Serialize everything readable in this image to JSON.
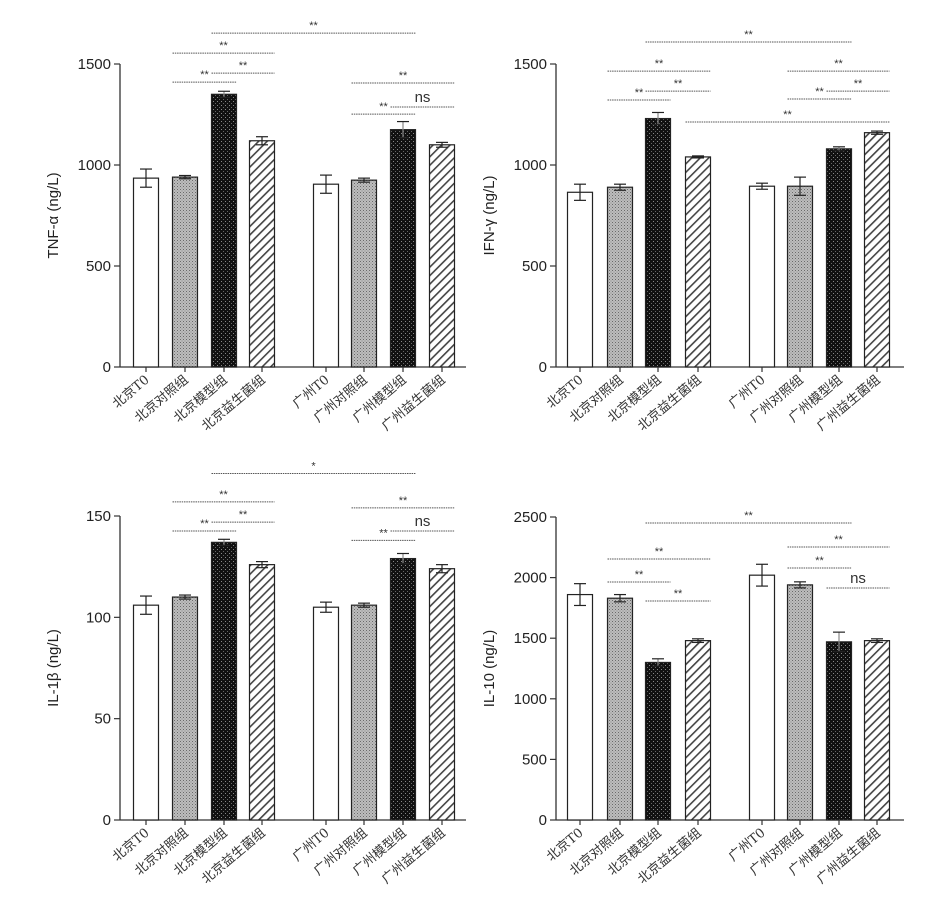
{
  "chart_data": [
    {
      "type": "bar",
      "ylabel": "TNF-α (ng/L)",
      "ylim": [
        0,
        1500
      ],
      "yticks": [
        "0",
        "500",
        "1000",
        "1500"
      ],
      "categories": [
        "北京T0",
        "北京对照组",
        "北京模型组",
        "北京益生菌组",
        "广州T0",
        "广州对照组",
        "广州模型组",
        "广州益生菌组"
      ],
      "values": [
        935,
        940,
        1350,
        1120,
        905,
        925,
        1175,
        1100
      ],
      "errors": [
        45,
        8,
        15,
        20,
        45,
        10,
        40,
        12
      ],
      "significance": [
        {
          "from": 1,
          "to": 2,
          "label": "**",
          "y": 1410
        },
        {
          "from": 2,
          "to": 3,
          "label": "**",
          "y": 1455
        },
        {
          "from": 1,
          "to": 3,
          "label": "**",
          "y": 1554
        },
        {
          "from": 2,
          "to": 6,
          "label": "**",
          "y": 1653
        },
        {
          "from": 5,
          "to": 6,
          "label": "**",
          "y": 1252
        },
        {
          "from": 6,
          "to": 7,
          "label": "ns",
          "y": 1287
        },
        {
          "from": 5,
          "to": 7,
          "label": "**",
          "y": 1406
        }
      ]
    },
    {
      "type": "bar",
      "ylabel": "IFN-γ (ng/L)",
      "ylim": [
        0,
        1500
      ],
      "yticks": [
        "0",
        "500",
        "1000",
        "1500"
      ],
      "categories": [
        "北京T0",
        "北京对照组",
        "北京模型组",
        "北京益生菌组",
        "广州T0",
        "广州对照组",
        "广州模型组",
        "广州益生菌组"
      ],
      "values": [
        865,
        890,
        1230,
        1040,
        895,
        895,
        1080,
        1160
      ],
      "errors": [
        40,
        15,
        30,
        5,
        15,
        45,
        10,
        8
      ],
      "significance": [
        {
          "from": 1,
          "to": 2,
          "label": "**",
          "y": 1322
        },
        {
          "from": 2,
          "to": 3,
          "label": "**",
          "y": 1366
        },
        {
          "from": 1,
          "to": 3,
          "label": "**",
          "y": 1465
        },
        {
          "from": 2,
          "to": 6,
          "label": "**",
          "y": 1609
        },
        {
          "from": 3,
          "to": 7,
          "label": "**",
          "y": 1213
        },
        {
          "from": 5,
          "to": 6,
          "label": "**",
          "y": 1327
        },
        {
          "from": 6,
          "to": 7,
          "label": "**",
          "y": 1366
        },
        {
          "from": 5,
          "to": 7,
          "label": "**",
          "y": 1465
        }
      ]
    },
    {
      "type": "bar",
      "ylabel": "IL-1β (ng/L)",
      "ylim": [
        0,
        150
      ],
      "yticks": [
        "0",
        "50",
        "100",
        "150"
      ],
      "categories": [
        "北京T0",
        "北京对照组",
        "北京模型组",
        "北京益生菌组",
        "广州T0",
        "广州对照组",
        "广州模型组",
        "广州益生菌组"
      ],
      "values": [
        106,
        110,
        137,
        126,
        105,
        106,
        129,
        124
      ],
      "errors": [
        4.5,
        1,
        1.5,
        1.5,
        2.5,
        1,
        2.5,
        2
      ],
      "significance": [
        {
          "from": 1,
          "to": 2,
          "label": "**",
          "y": 142.6
        },
        {
          "from": 2,
          "to": 3,
          "label": "**",
          "y": 147
        },
        {
          "from": 1,
          "to": 3,
          "label": "**",
          "y": 157
        },
        {
          "from": 2,
          "to": 6,
          "label": "*",
          "y": 171
        },
        {
          "from": 5,
          "to": 6,
          "label": "**",
          "y": 138
        },
        {
          "from": 6,
          "to": 7,
          "label": "ns",
          "y": 142.6
        },
        {
          "from": 5,
          "to": 7,
          "label": "**",
          "y": 154
        }
      ]
    },
    {
      "type": "bar",
      "ylabel": "IL-10 (ng/L)",
      "ylim": [
        0,
        2500
      ],
      "yticks": [
        "0",
        "500",
        "1000",
        "1500",
        "2000",
        "2500"
      ],
      "categories": [
        "北京T0",
        "北京对照组",
        "北京模型组",
        "北京益生菌组",
        "广州T0",
        "广州对照组",
        "广州模型组",
        "广州益生菌组"
      ],
      "values": [
        1860,
        1830,
        1300,
        1480,
        2020,
        1940,
        1470,
        1480
      ],
      "errors": [
        90,
        30,
        30,
        15,
        90,
        25,
        80,
        15
      ],
      "significance": [
        {
          "from": 1,
          "to": 2,
          "label": "**",
          "y": 1964
        },
        {
          "from": 2,
          "to": 3,
          "label": "**",
          "y": 1807
        },
        {
          "from": 1,
          "to": 3,
          "label": "**",
          "y": 2153
        },
        {
          "from": 2,
          "to": 6,
          "label": "**",
          "y": 2450
        },
        {
          "from": 5,
          "to": 6,
          "label": "**",
          "y": 2079
        },
        {
          "from": 6,
          "to": 7,
          "label": "ns",
          "y": 1914
        },
        {
          "from": 5,
          "to": 7,
          "label": "**",
          "y": 2252
        }
      ]
    }
  ]
}
